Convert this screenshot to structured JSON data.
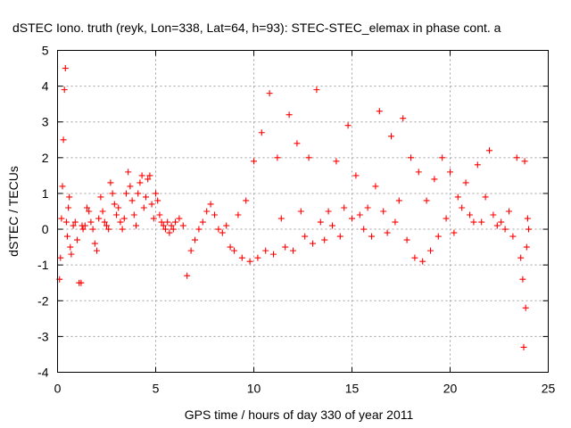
{
  "chart_data": {
    "type": "scatter",
    "title": "dSTEC Iono. truth (reyk, Lon=338, Lat=64, h=93): STEC-STEC_elemax in phase cont. a",
    "xlabel": "GPS time / hours of day 330 of year 2011",
    "ylabel": "dSTEC  / TECUs",
    "xlim": [
      0,
      25
    ],
    "ylim": [
      -4,
      5
    ],
    "xticks": [
      0,
      5,
      10,
      15,
      20,
      25
    ],
    "yticks": [
      -4,
      -3,
      -2,
      -1,
      0,
      1,
      2,
      3,
      4,
      5
    ],
    "grid": true,
    "marker": "plus",
    "color": "#ff0000",
    "series": [
      {
        "x": [
          0.1,
          0.15,
          0.2,
          0.25,
          0.3,
          0.35,
          0.4,
          0.45,
          0.5,
          0.55,
          0.6,
          0.65,
          0.7,
          0.8,
          0.9,
          1.0,
          1.1,
          1.2,
          1.25,
          1.3,
          1.4,
          1.5,
          1.6,
          1.7,
          1.8,
          1.9,
          2.0,
          2.1,
          2.2,
          2.3,
          2.4,
          2.5,
          2.6,
          2.7,
          2.8,
          2.9,
          3.0,
          3.1,
          3.2,
          3.3,
          3.4,
          3.5,
          3.6,
          3.7,
          3.8,
          3.9,
          4.0,
          4.1,
          4.2,
          4.3,
          4.4,
          4.5,
          4.6,
          4.7,
          4.8,
          4.9,
          5.0,
          5.1,
          5.2,
          5.3,
          5.4,
          5.5,
          5.6,
          5.7,
          5.8,
          5.9,
          6.0,
          6.2,
          6.4,
          6.6,
          6.8,
          7.0,
          7.2,
          7.4,
          7.6,
          7.8,
          8.0,
          8.2,
          8.4,
          8.6,
          8.8,
          9.0,
          9.2,
          9.4,
          9.6,
          9.8,
          10.0,
          10.2,
          10.4,
          10.6,
          10.8,
          11.0,
          11.2,
          11.4,
          11.6,
          11.8,
          12.0,
          12.2,
          12.4,
          12.6,
          12.8,
          13.0,
          13.2,
          13.4,
          13.6,
          13.8,
          14.0,
          14.2,
          14.4,
          14.6,
          14.8,
          15.0,
          15.2,
          15.4,
          15.6,
          15.8,
          16.0,
          16.2,
          16.4,
          16.6,
          16.8,
          17.0,
          17.2,
          17.4,
          17.6,
          17.8,
          18.0,
          18.2,
          18.4,
          18.6,
          18.8,
          19.0,
          19.2,
          19.4,
          19.6,
          19.8,
          20.0,
          20.2,
          20.4,
          20.6,
          20.8,
          21.0,
          21.2,
          21.4,
          21.6,
          21.8,
          22.0,
          22.2,
          22.4,
          22.6,
          22.8,
          23.0,
          23.2,
          23.4,
          23.6,
          23.7,
          23.75,
          23.8,
          23.85,
          23.9,
          23.95,
          24.0
        ],
        "y": [
          -1.4,
          -0.8,
          0.3,
          1.2,
          2.5,
          3.9,
          4.5,
          0.2,
          -0.2,
          0.6,
          0.9,
          -0.5,
          -0.7,
          0.1,
          0.2,
          -0.3,
          -1.5,
          -1.5,
          0.1,
          0.0,
          0.1,
          0.6,
          0.5,
          0.2,
          0.0,
          -0.4,
          -0.6,
          0.3,
          0.9,
          0.5,
          0.2,
          0.1,
          0.0,
          1.3,
          1.0,
          0.7,
          0.4,
          0.6,
          0.2,
          0.0,
          0.3,
          1.0,
          1.6,
          1.2,
          0.8,
          0.4,
          0.1,
          1.0,
          1.3,
          1.5,
          0.6,
          0.9,
          1.4,
          1.5,
          0.7,
          0.3,
          1.0,
          0.8,
          0.4,
          0.2,
          0.1,
          0.0,
          0.2,
          -0.1,
          0.1,
          0.0,
          0.2,
          0.3,
          0.1,
          -1.3,
          -0.6,
          -0.3,
          0.0,
          0.2,
          0.5,
          0.7,
          0.4,
          0.0,
          -0.1,
          0.1,
          -0.5,
          -0.6,
          0.4,
          -0.8,
          0.8,
          -0.9,
          1.9,
          -0.8,
          2.7,
          -0.6,
          3.8,
          -0.7,
          2.0,
          0.3,
          -0.5,
          3.2,
          -0.6,
          2.4,
          0.5,
          -0.2,
          2.0,
          -0.4,
          3.9,
          0.2,
          -0.3,
          0.5,
          0.1,
          1.9,
          -0.2,
          0.6,
          2.9,
          0.3,
          1.5,
          0.4,
          0.0,
          0.6,
          -0.2,
          1.2,
          3.3,
          0.5,
          -0.1,
          2.6,
          0.2,
          0.8,
          3.1,
          -0.3,
          2.0,
          -0.8,
          1.6,
          -0.9,
          0.8,
          -0.6,
          1.4,
          -0.2,
          2.0,
          0.3,
          1.6,
          -0.1,
          0.9,
          0.6,
          1.3,
          0.4,
          0.2,
          1.8,
          0.2,
          0.9,
          2.2,
          0.4,
          0.1,
          0.2,
          0.0,
          0.5,
          -0.2,
          2.0,
          -0.8,
          -1.4,
          -3.3,
          1.9,
          -2.2,
          -0.5,
          0.3,
          0.0
        ]
      }
    ]
  }
}
